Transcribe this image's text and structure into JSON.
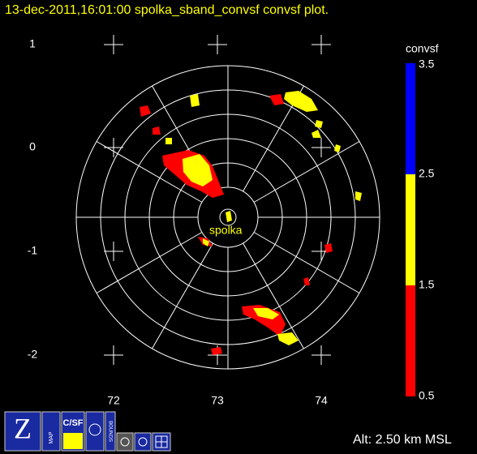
{
  "header": {
    "title": "13-dec-2011,16:01:00  spolka_sband_convsf convsf  plot."
  },
  "axes": {
    "y_labels": [
      "1",
      "0",
      "-1",
      "-2"
    ],
    "x_labels": [
      "72",
      "73",
      "74"
    ]
  },
  "station": {
    "label": "spolka"
  },
  "colorbar": {
    "title": "convsf",
    "ticks": [
      "3.5",
      "2.5",
      "1.5",
      "0.5"
    ]
  },
  "toolbar": [
    "MAP",
    "C/SF",
    "BOUNDS"
  ],
  "status": {
    "altitude": "Alt: 2.50 km MSL"
  }
}
